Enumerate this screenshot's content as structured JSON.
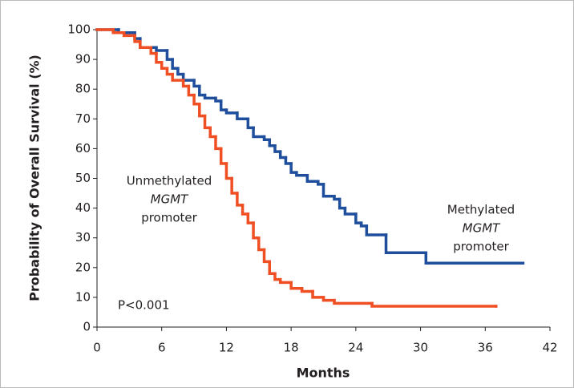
{
  "chart_data": {
    "type": "step",
    "xlabel": "Months",
    "ylabel": "Probability of Overall Survival (%)",
    "xlim": [
      0,
      42
    ],
    "xticks": [
      0,
      6,
      12,
      18,
      24,
      30,
      36,
      42
    ],
    "ylim": [
      0,
      100
    ],
    "yticks": [
      0,
      10,
      20,
      30,
      40,
      50,
      60,
      70,
      80,
      90,
      100
    ],
    "series": [
      {
        "name": "Methylated MGMT promoter",
        "label_lines": [
          "Methylated",
          "MGMT",
          "promoter"
        ],
        "color": "#1f4e9c",
        "x": [
          0,
          2,
          3.5,
          4,
          5.5,
          6.5,
          7,
          7.5,
          8,
          9,
          9.5,
          10,
          11,
          11.5,
          12,
          13,
          14,
          14.5,
          15.5,
          16,
          16.5,
          17,
          17.5,
          18,
          18.5,
          19.5,
          20.5,
          21,
          22,
          22.5,
          23,
          24,
          24.5,
          25,
          26.8,
          30.5,
          39.5
        ],
        "values": [
          100,
          99,
          97,
          94,
          93,
          90,
          87,
          85,
          83,
          81,
          78,
          77,
          76,
          73,
          72,
          70,
          67,
          64,
          63,
          61,
          59,
          57,
          55,
          52,
          51,
          49,
          48,
          44,
          43,
          40,
          38,
          35,
          34,
          31,
          25,
          21.5,
          21.5
        ]
      },
      {
        "name": "Unmethylated MGMT promoter",
        "label_lines": [
          "Unmethylated",
          "MGMT",
          "promoter"
        ],
        "color": "#f04e23",
        "x": [
          0,
          1.5,
          2.5,
          3.5,
          4,
          5,
          5.5,
          6,
          6.5,
          7,
          8,
          8.5,
          9,
          9.5,
          10,
          10.5,
          11,
          11.5,
          12,
          12.5,
          13,
          13.5,
          14,
          14.5,
          15,
          15.5,
          16,
          16.5,
          17,
          18,
          19,
          20,
          21,
          22,
          25.5,
          37
        ],
        "values": [
          100,
          99,
          98,
          96,
          94,
          92,
          89,
          87,
          85,
          83,
          81,
          78,
          75,
          71,
          67,
          64,
          60,
          55,
          50,
          45,
          41,
          38,
          35,
          30,
          26,
          22,
          18,
          16,
          15,
          13,
          12,
          10,
          9,
          8,
          7,
          7
        ]
      }
    ],
    "annotation": "P<0.001"
  }
}
